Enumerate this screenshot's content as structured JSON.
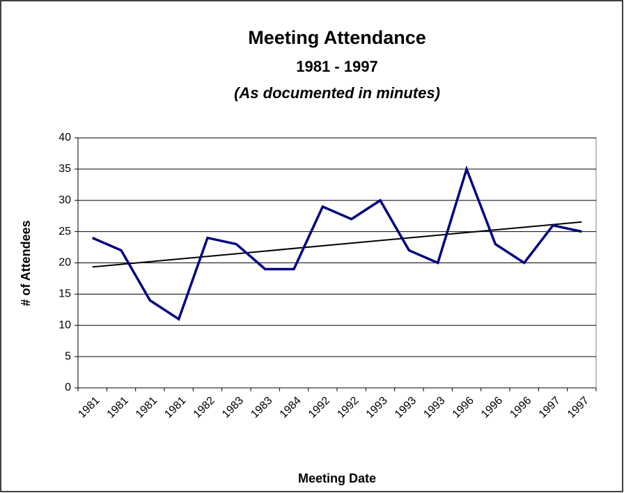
{
  "chart_data": {
    "type": "line",
    "title": "Meeting Attendance",
    "subtitle": "1981 - 1997",
    "note": "(As documented in minutes)",
    "x_label": "Meeting Date",
    "y_label": "# of Attendees",
    "categories": [
      "1981",
      "1981",
      "1981",
      "1981",
      "1982",
      "1983",
      "1983",
      "1984",
      "1992",
      "1992",
      "1993",
      "1993",
      "1993",
      "1996",
      "1996",
      "1996",
      "1997",
      "1997"
    ],
    "series": [
      {
        "color": "#000080",
        "values": [
          24,
          22,
          14,
          11,
          24,
          23,
          19,
          19,
          29,
          27,
          30,
          22,
          20,
          35,
          23,
          20,
          26,
          25
        ]
      }
    ],
    "trendline": "linear",
    "trendline_color": "#000000",
    "ylim": [
      0,
      40
    ],
    "yticks": [
      0,
      5,
      10,
      15,
      20,
      25,
      30,
      35,
      40
    ],
    "grid": true
  }
}
